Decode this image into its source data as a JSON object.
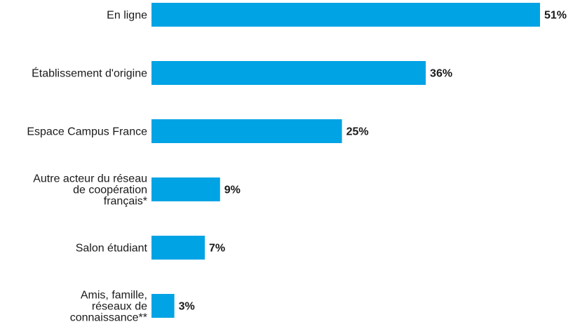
{
  "chart_data": {
    "type": "bar",
    "orientation": "horizontal",
    "categories": [
      [
        "En ligne"
      ],
      [
        "Établissement d'origine"
      ],
      [
        "Espace Campus France"
      ],
      [
        "Autre acteur du réseau",
        "de coopération",
        "français*"
      ],
      [
        "Salon étudiant"
      ],
      [
        "Amis, famille,",
        "réseaux de",
        "connaissance**"
      ]
    ],
    "values": [
      51,
      36,
      25,
      9,
      7,
      3
    ],
    "value_labels": [
      "51%",
      "36%",
      "25%",
      "9%",
      "7%",
      "3%"
    ],
    "unit": "%",
    "xlim": [
      0,
      51
    ],
    "bar_color": "#00a3e4",
    "grid": false,
    "legend": "none"
  }
}
